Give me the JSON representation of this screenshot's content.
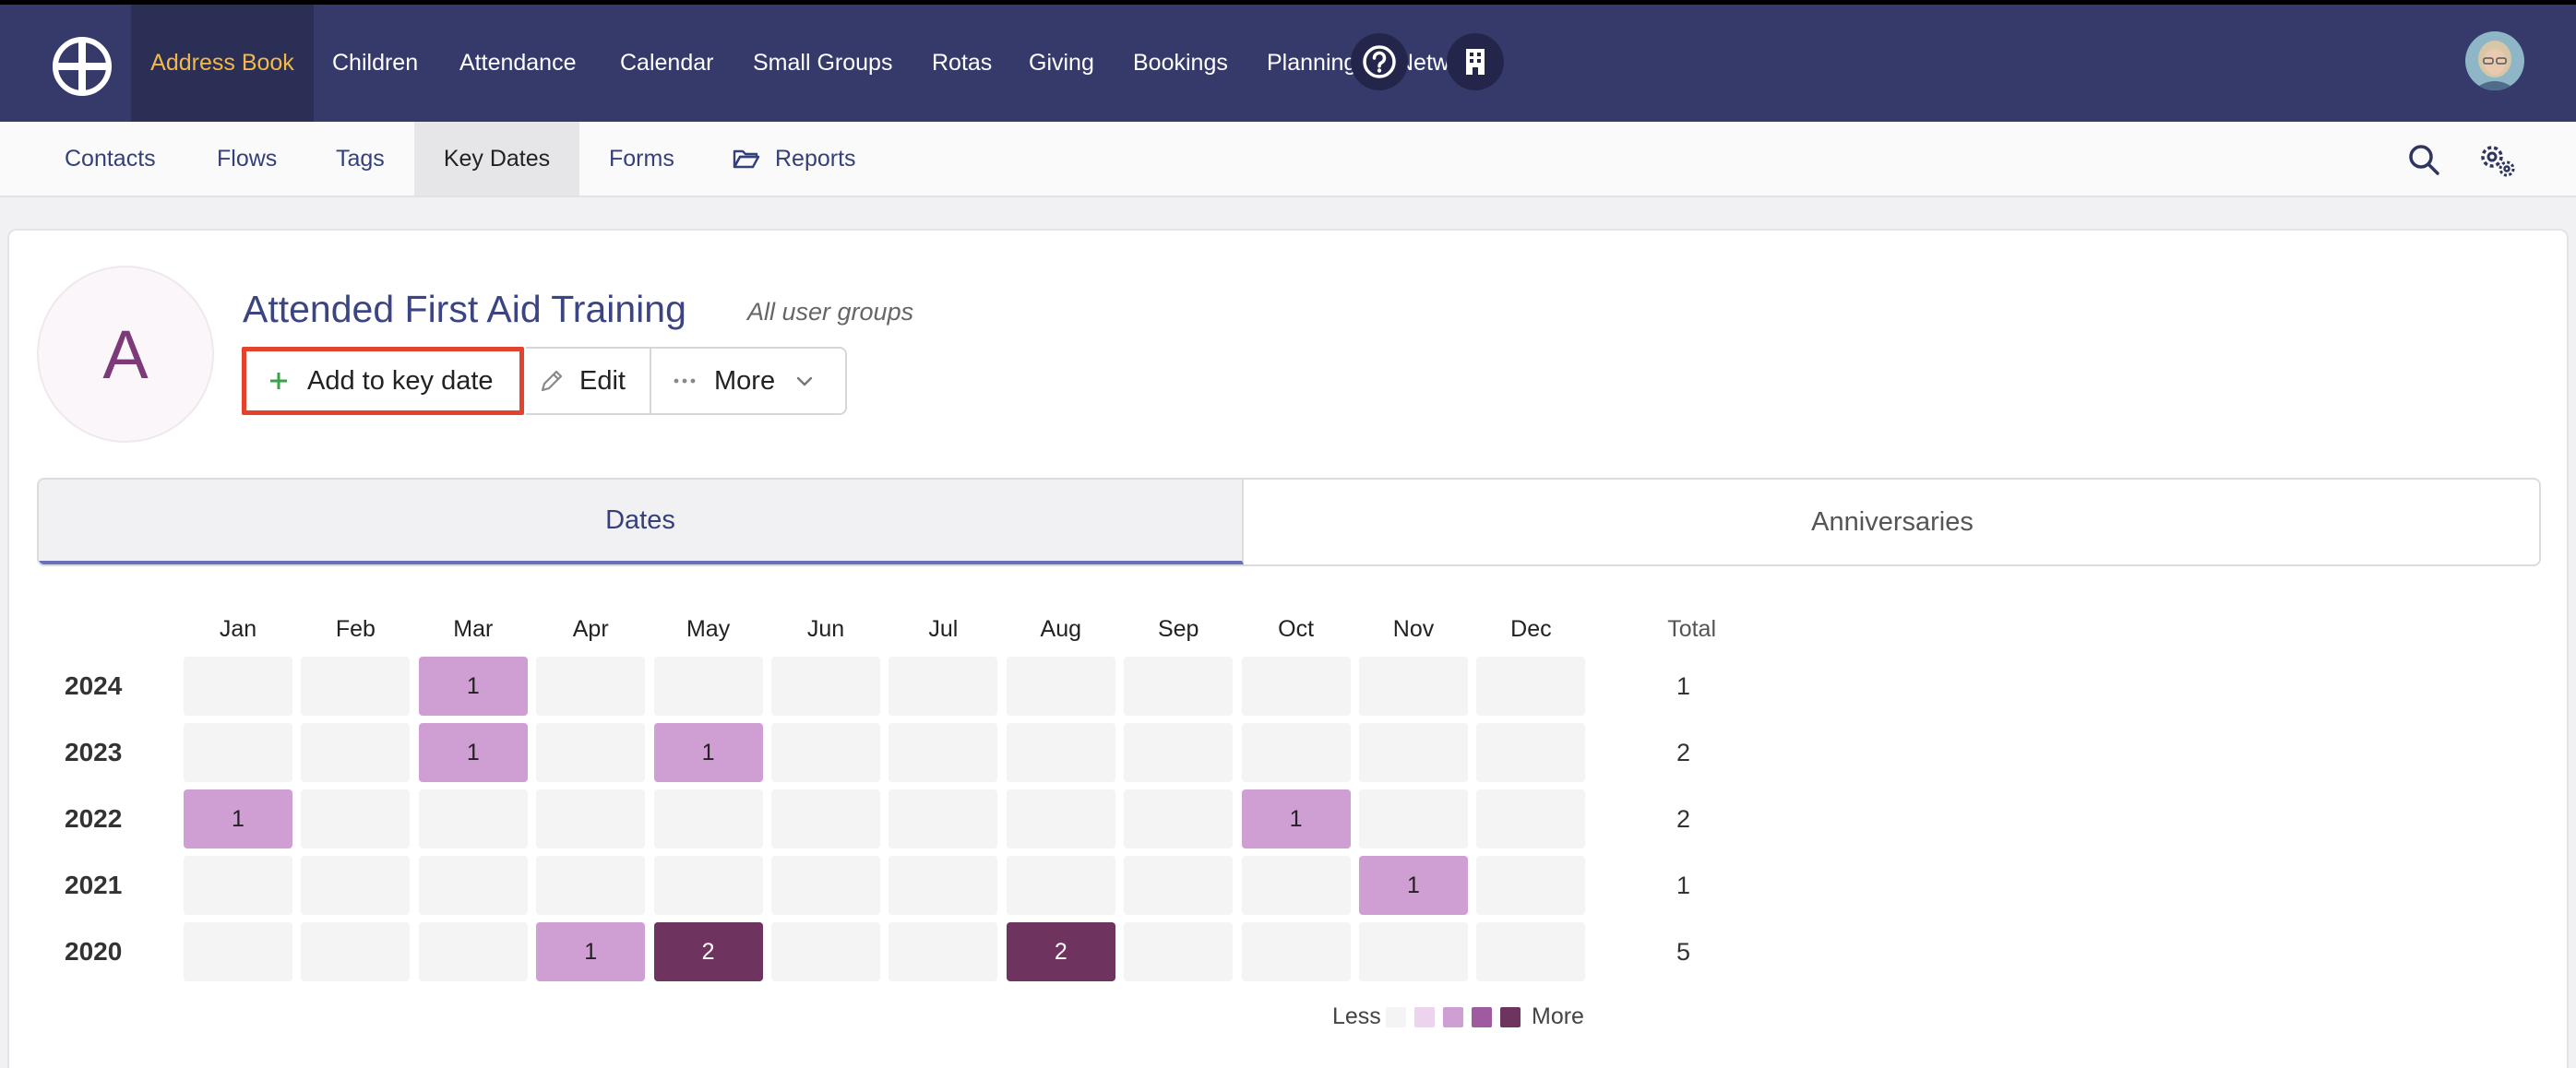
{
  "nav": {
    "items": [
      {
        "label": "Address Book"
      },
      {
        "label": "Children"
      },
      {
        "label": "Attendance"
      },
      {
        "label": "Calendar"
      },
      {
        "label": "Small Groups"
      },
      {
        "label": "Rotas"
      },
      {
        "label": "Giving"
      },
      {
        "label": "Bookings"
      },
      {
        "label": "Planning"
      },
      {
        "label": "Network"
      }
    ],
    "icons": [
      "help-icon",
      "building-icon",
      "user-avatar"
    ]
  },
  "subnav": {
    "items": [
      {
        "label": "Contacts"
      },
      {
        "label": "Flows"
      },
      {
        "label": "Tags"
      },
      {
        "label": "Key Dates"
      },
      {
        "label": "Forms"
      },
      {
        "label": "Reports"
      }
    ],
    "icons": [
      "folder-icon",
      "search-icon",
      "settings-icon"
    ]
  },
  "keydate": {
    "avatar_letter": "A",
    "title": "Attended First Aid Training",
    "subtitle": "All user groups",
    "add_label": "Add to key date",
    "edit_label": "Edit",
    "more_label": "More"
  },
  "tabs": {
    "dates": "Dates",
    "anniversaries": "Anniversaries"
  },
  "heatmap": {
    "months": [
      "Jan",
      "Feb",
      "Mar",
      "Apr",
      "May",
      "Jun",
      "Jul",
      "Aug",
      "Sep",
      "Oct",
      "Nov",
      "Dec"
    ],
    "total_label": "Total",
    "rows": [
      {
        "year": "2024",
        "values": [
          "",
          "",
          "1",
          "",
          "",
          "",
          "",
          "",
          "",
          "",
          "",
          ""
        ],
        "total": "1"
      },
      {
        "year": "2023",
        "values": [
          "",
          "",
          "1",
          "",
          "1",
          "",
          "",
          "",
          "",
          "",
          "",
          ""
        ],
        "total": "2"
      },
      {
        "year": "2022",
        "values": [
          "1",
          "",
          "",
          "",
          "",
          "",
          "",
          "",
          "",
          "1",
          "",
          ""
        ],
        "total": "2"
      },
      {
        "year": "2021",
        "values": [
          "",
          "",
          "",
          "",
          "",
          "",
          "",
          "",
          "",
          "",
          "1",
          ""
        ],
        "total": "1"
      },
      {
        "year": "2020",
        "values": [
          "",
          "",
          "",
          "1",
          "2",
          "",
          "",
          "2",
          "",
          "",
          "",
          ""
        ],
        "total": "5"
      }
    ],
    "legend": {
      "less": "Less",
      "more": "More",
      "colors": [
        "#f4f4f4",
        "#ecd3ee",
        "#cf9fd4",
        "#a05aa0",
        "#6e335f"
      ]
    }
  },
  "colors": {
    "topbar": "#363a6b",
    "active_nav_text": "#f2b84b",
    "highlight_border": "#e3432c",
    "cell_level1": "#cf9fd4",
    "cell_level2": "#6e335f"
  }
}
